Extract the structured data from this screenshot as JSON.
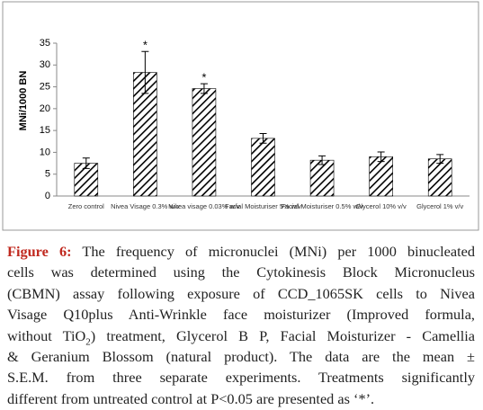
{
  "chart_data": {
    "type": "bar",
    "y_label": "MNi/1000 BN",
    "categories": [
      "Zero control",
      "Nivea Visage 0.3% w/v",
      "Nivea visage 0.03% w/v",
      "Facial Moisturiser 5% w/v",
      "Facial Moisturiser 0.5% w/v",
      "Glycerol 10% v/v",
      "Glycerol 1% v/v"
    ],
    "values": [
      7.5,
      28.3,
      24.6,
      13.2,
      8.2,
      9.0,
      8.5
    ],
    "errors": [
      1.2,
      4.8,
      1.1,
      1.1,
      1.0,
      1.1,
      1.0
    ],
    "color": "#000000",
    "hatch": true,
    "annotations": [
      {
        "text": "*",
        "category": "Nivea Visage 0.3% w/v"
      },
      {
        "text": "*",
        "category": "Nivea visage 0.03% w/v"
      }
    ],
    "ylim": [
      0,
      35
    ],
    "yticks": [
      0,
      5,
      10,
      15,
      20,
      25,
      30,
      35
    ],
    "grid": false
  },
  "caption": {
    "label": "Figure 6:",
    "lines": [
      "The frequency of micronuclei (MNi) per 1000 binucleated",
      "cells was determined using the Cytokinesis Block Micronucleus",
      "(CBMN) assay following exposure of CCD_1065SK cells to Nivea",
      "Visage Q10plus Anti-Wrinkle face moisturizer (Improved formula,",
      [
        "without TiO",
        "2",
        ") treatment, Glycerol B P, Facial Moisturizer - Camellia"
      ],
      "& Geranium Blossom (natural product). The data are the mean ±",
      "S.E.M. from three separate experiments. Treatments significantly",
      "different from untreated control at P<0.05 are presented as ‘*’."
    ]
  }
}
